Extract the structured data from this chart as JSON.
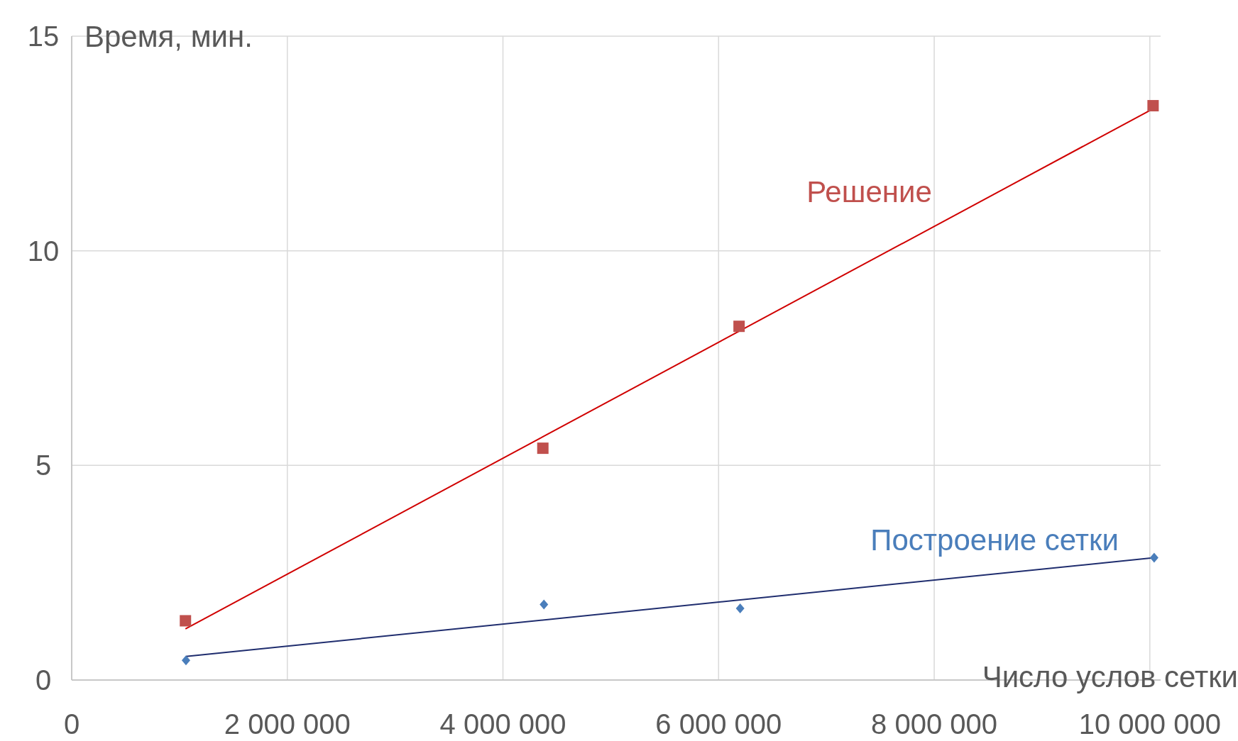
{
  "chart_data": {
    "type": "scatter",
    "xlabel": "Число услов сетки",
    "ylabel": "Время, мин.",
    "xlim": [
      0,
      10100000
    ],
    "ylim": [
      0,
      15
    ],
    "xticks": [
      0,
      {
        "value": 2000000,
        "label": "2 000 000"
      },
      {
        "value": 4000000,
        "label": "4 000 000"
      },
      {
        "value": 6000000,
        "label": "6 000 000"
      },
      {
        "value": 8000000,
        "label": "8 000 000"
      },
      {
        "value": 10000000,
        "label": "10 000 000"
      }
    ],
    "yticks": [
      0,
      5,
      10,
      15
    ],
    "grid": true,
    "legend": false,
    "series": [
      {
        "name": "Решение",
        "marker": "square",
        "color": "#c0504d",
        "x": [
          1055000,
          4370000,
          6190000,
          10030000
        ],
        "values": [
          1.38,
          5.4,
          8.24,
          13.38
        ]
      },
      {
        "name": "Построение сетки",
        "marker": "diamond",
        "color": "#4a7ebb",
        "x": [
          1060000,
          4380000,
          6200000,
          10040000
        ],
        "values": [
          0.46,
          1.76,
          1.67,
          2.85
        ]
      },
      {
        "type": "line",
        "color": "#d00000",
        "marker": "none",
        "x": [
          1055000,
          10030000
        ],
        "values": [
          1.19,
          13.31
        ]
      },
      {
        "type": "line",
        "color": "#1f2d6e",
        "marker": "none",
        "x": [
          1060000,
          10040000
        ],
        "values": [
          0.55,
          2.85
        ]
      }
    ]
  }
}
